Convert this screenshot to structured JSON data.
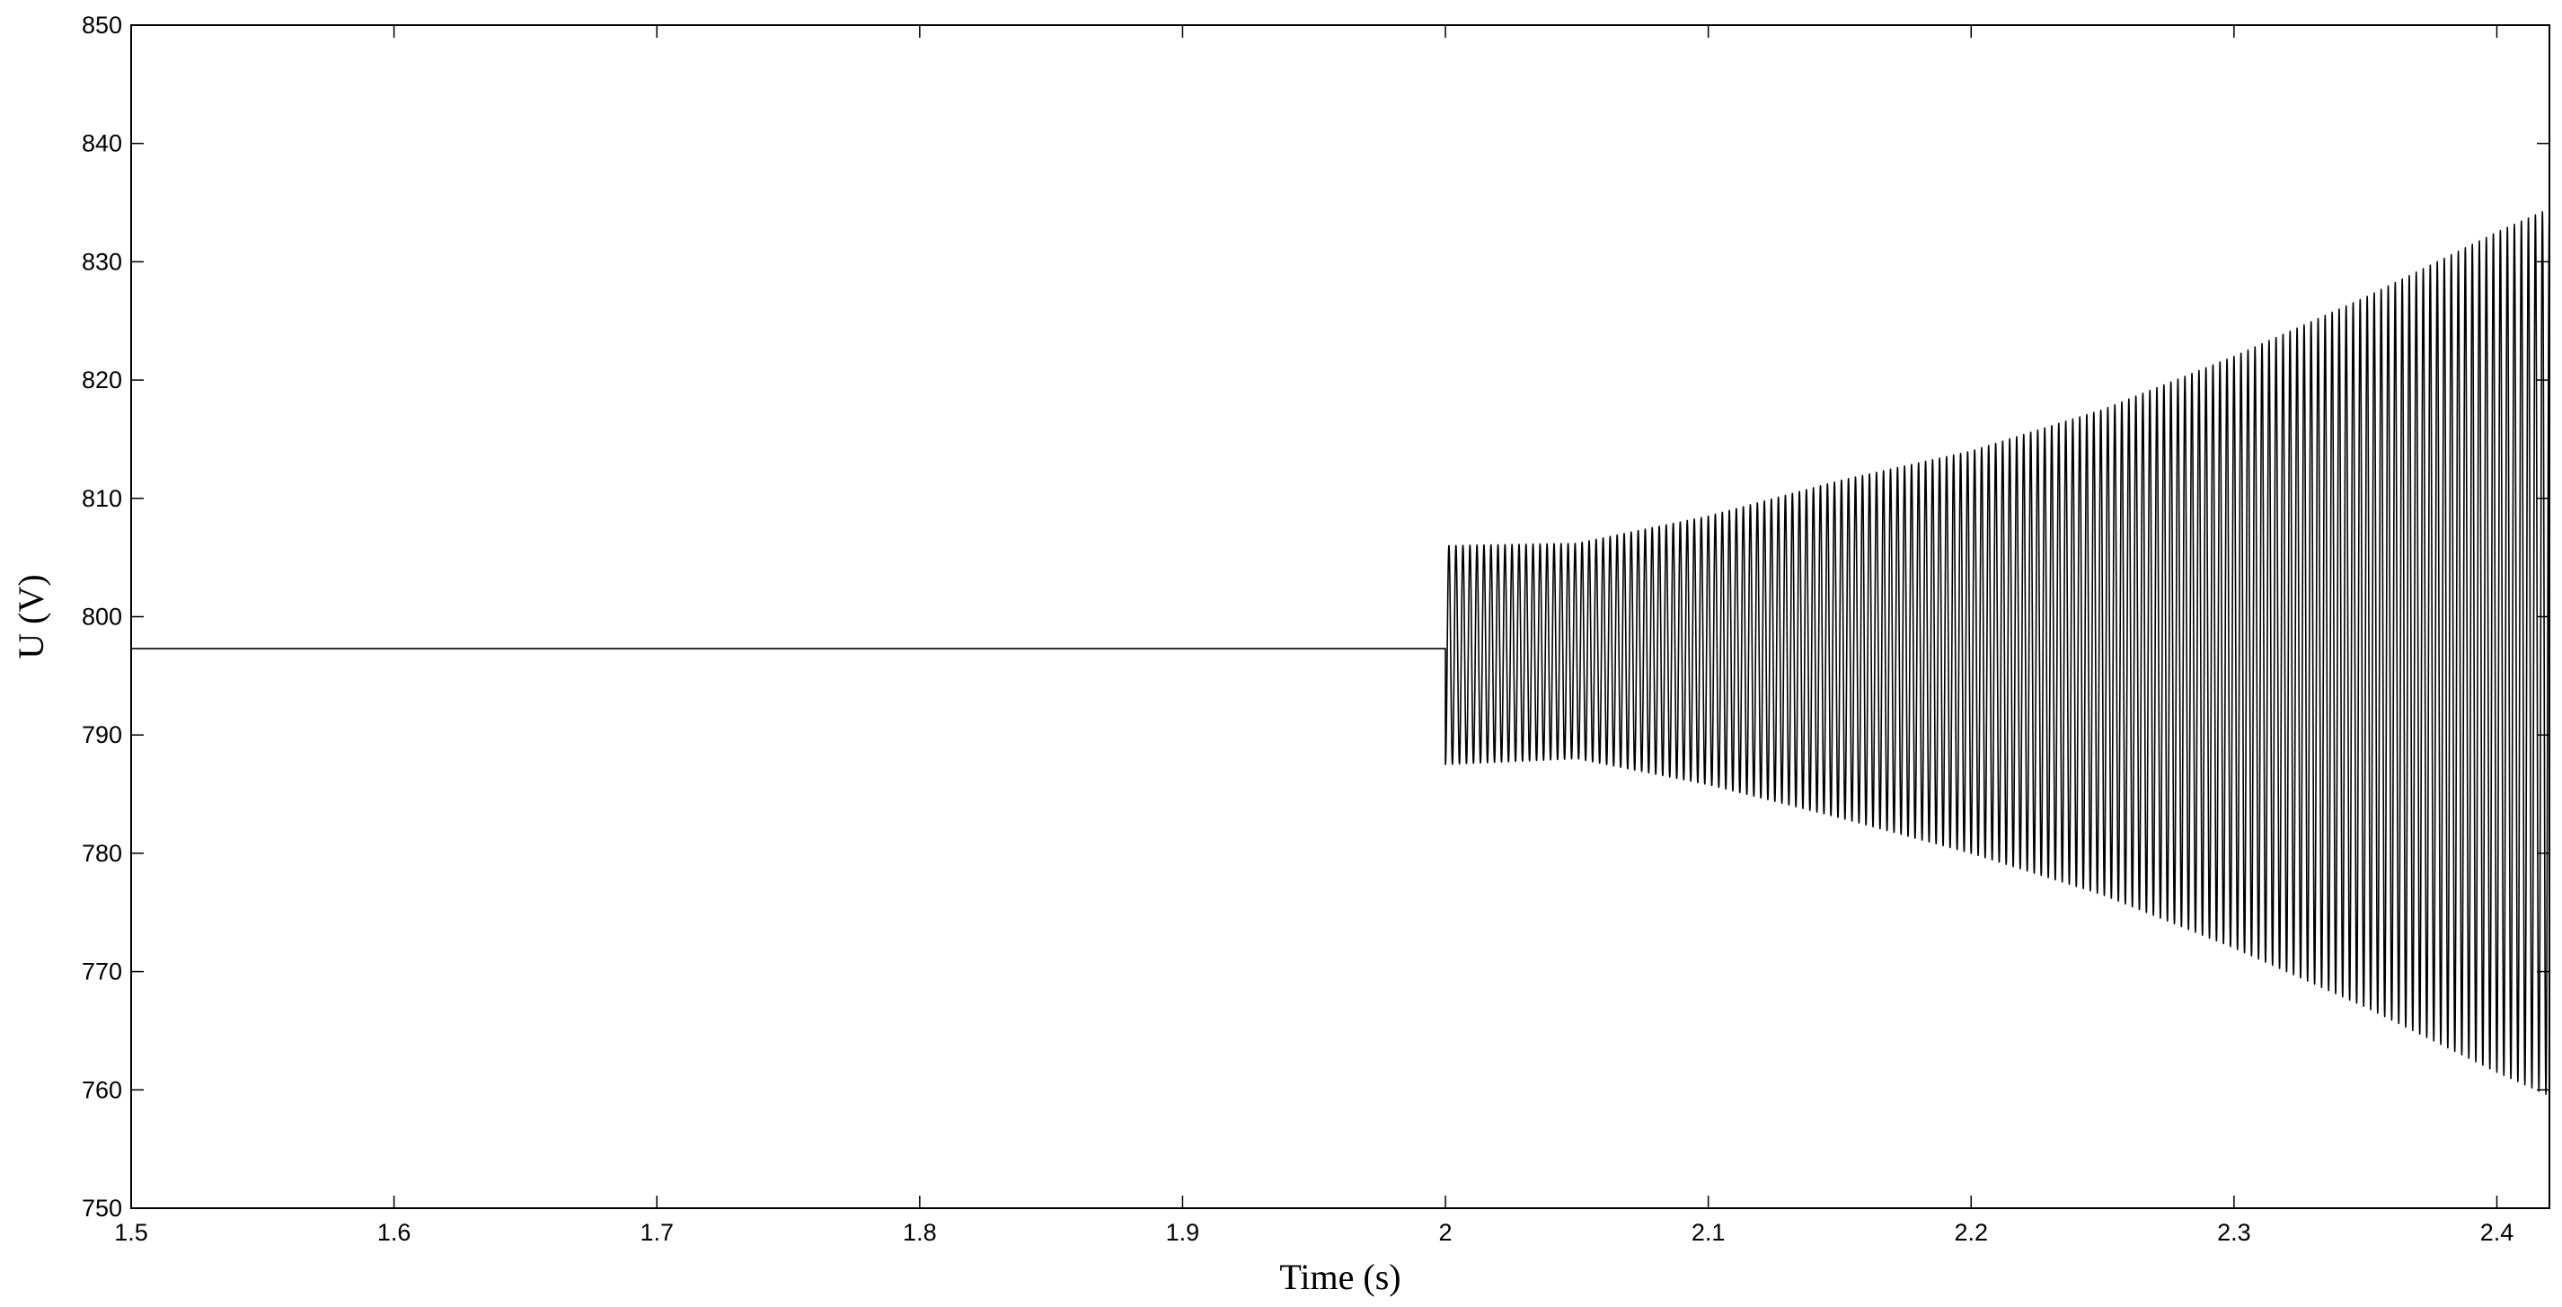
{
  "chart_data": {
    "type": "line",
    "title": "",
    "xlabel": "Time (s)",
    "ylabel": "U (V)",
    "xlim": [
      1.5,
      2.42
    ],
    "ylim": [
      750,
      850
    ],
    "x_ticks": [
      "1.5",
      "1.6",
      "1.7",
      "1.8",
      "1.9",
      "2",
      "2.1",
      "2.2",
      "2.3",
      "2.4"
    ],
    "y_ticks": [
      "750",
      "760",
      "770",
      "780",
      "790",
      "800",
      "810",
      "820",
      "830",
      "840",
      "850"
    ],
    "grid": false,
    "legend": "none",
    "line_color": "#000000",
    "series": [
      {
        "name": "",
        "steady_value": 797.3,
        "disturbance_time": 2.0,
        "oscillation_frequency_hz": 375,
        "envelope": [
          {
            "t": 2.0,
            "upper": 806.0,
            "lower": 787.5
          },
          {
            "t": 2.05,
            "upper": 806.2,
            "lower": 788.0
          },
          {
            "t": 2.1,
            "upper": 808.5,
            "lower": 785.8
          },
          {
            "t": 2.15,
            "upper": 811.5,
            "lower": 783.0
          },
          {
            "t": 2.2,
            "upper": 814.0,
            "lower": 780.0
          },
          {
            "t": 2.25,
            "upper": 817.5,
            "lower": 776.5
          },
          {
            "t": 2.3,
            "upper": 822.0,
            "lower": 772.0
          },
          {
            "t": 2.35,
            "upper": 827.0,
            "lower": 767.0
          },
          {
            "t": 2.4,
            "upper": 832.5,
            "lower": 761.5
          },
          {
            "t": 2.42,
            "upper": 834.5,
            "lower": 759.5
          }
        ]
      }
    ]
  }
}
